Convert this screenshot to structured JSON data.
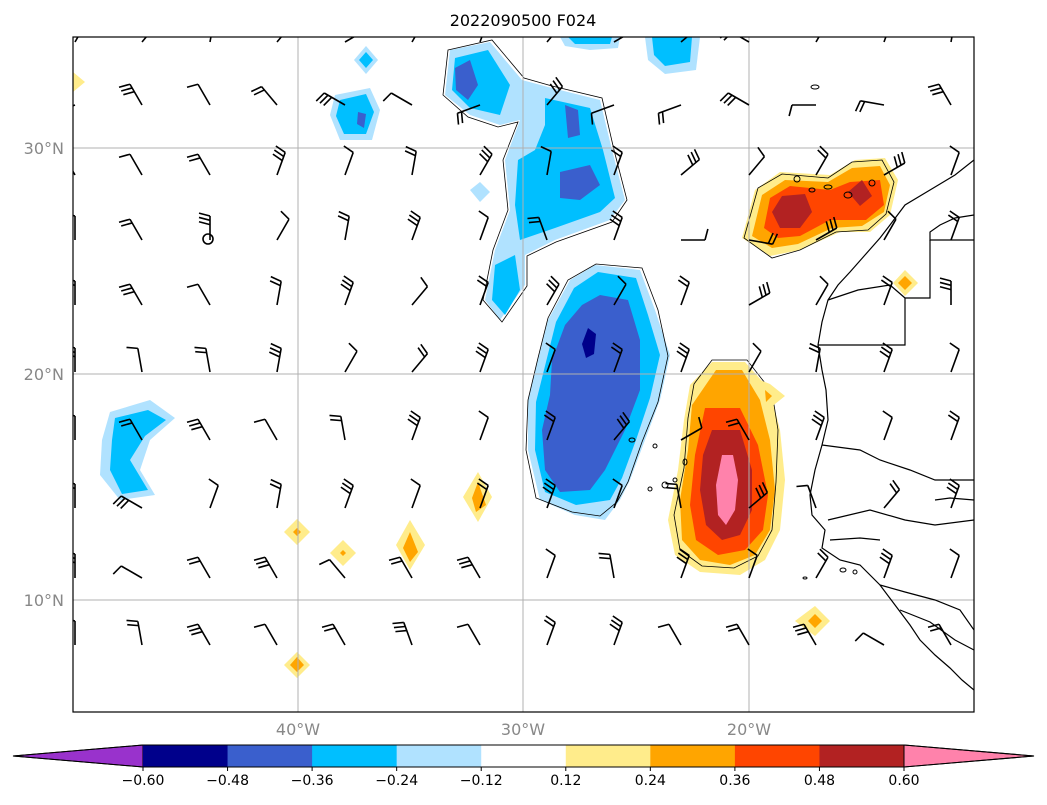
{
  "title": "2022090500 F024",
  "axes": {
    "lat_ticks": [
      {
        "label": "30°N",
        "value": 30
      },
      {
        "label": "20°N",
        "value": 20
      },
      {
        "label": "10°N",
        "value": 10
      }
    ],
    "lon_ticks": [
      {
        "label": "40°W",
        "value": -40
      },
      {
        "label": "30°W",
        "value": -30
      },
      {
        "label": "20°W",
        "value": -20
      }
    ],
    "lon_range": [
      -50,
      -10
    ],
    "lat_range": [
      5,
      35
    ],
    "grid": true
  },
  "colorbar": {
    "orientation": "horizontal",
    "extend": "both",
    "levels": [
      -0.72,
      -0.6,
      -0.48,
      -0.36,
      -0.24,
      -0.12,
      0.12,
      0.24,
      0.36,
      0.48,
      0.6,
      0.72
    ],
    "tick_labels": [
      "−0.60",
      "−0.48",
      "−0.36",
      "−0.24",
      "−0.12",
      "0.12",
      "0.24",
      "0.36",
      "0.48",
      "0.60"
    ],
    "colors": [
      "#9932cc",
      "#00008b",
      "#3a5fcd",
      "#00bfff",
      "#b0e2ff",
      "#ffffff",
      "#ffec8b",
      "#ffa500",
      "#ff4500",
      "#b22222",
      "#ff82ab"
    ]
  },
  "map_features": [
    "coastlines",
    "country-borders",
    "wind-barbs",
    "filled-contours"
  ],
  "regions": [
    {
      "name": "positive-anomaly-west-africa-offshore",
      "lon": -21.5,
      "lat": 15.5,
      "max_level": 0.6
    },
    {
      "name": "positive-anomaly-morocco-coast",
      "lon": -16.5,
      "lat": 27.5,
      "max_level": 0.48
    },
    {
      "name": "negative-anomaly-central-atlantic",
      "lon": -27.5,
      "lat": 19.0,
      "max_level": -0.48
    },
    {
      "name": "negative-anomaly-north",
      "lon": -29.0,
      "lat": 30.0,
      "max_level": -0.36
    },
    {
      "name": "negative-anomaly-west",
      "lon": -48.5,
      "lat": 16.5,
      "max_level": -0.24
    }
  ]
}
